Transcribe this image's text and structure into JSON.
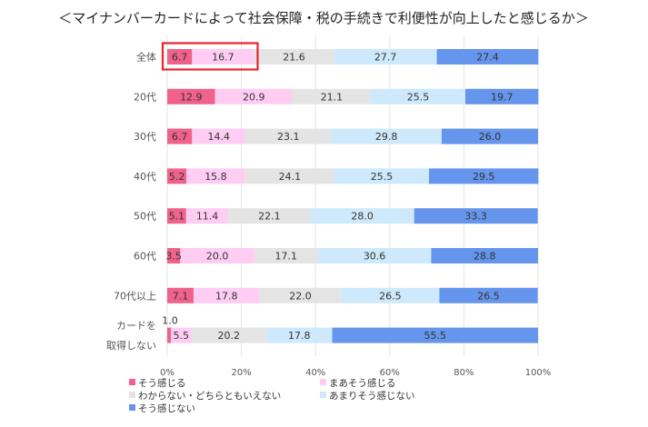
{
  "chart_data": {
    "type": "bar",
    "orientation": "horizontal",
    "stacked": true,
    "title": "＜マイナンバーカードによって社会保障・税の手続きで利便性が向上したと感じるか＞",
    "categories": [
      "全体",
      "20代",
      "30代",
      "40代",
      "50代",
      "60代",
      "70代以上",
      "カードを取得しない"
    ],
    "category_lines": [
      [
        "全体"
      ],
      [
        "20代"
      ],
      [
        "30代"
      ],
      [
        "40代"
      ],
      [
        "50代"
      ],
      [
        "60代"
      ],
      [
        "70代以上"
      ],
      [
        "カードを",
        "取得しない"
      ]
    ],
    "series": [
      {
        "name": "そう感じる",
        "color": "#f0628c",
        "values": [
          6.7,
          12.9,
          6.7,
          5.2,
          5.1,
          3.5,
          7.1,
          1.0
        ]
      },
      {
        "name": "まあそう感じる",
        "color": "#ffcdf3",
        "values": [
          16.7,
          20.9,
          14.4,
          15.8,
          11.4,
          20.0,
          17.8,
          5.5
        ]
      },
      {
        "name": "わからない・どちらともいえない",
        "color": "#e4e4e4",
        "values": [
          21.6,
          21.1,
          23.1,
          24.1,
          22.1,
          17.1,
          22.0,
          20.2
        ]
      },
      {
        "name": "あまりそう感じない",
        "color": "#cde9fb",
        "values": [
          27.7,
          25.5,
          29.8,
          25.5,
          28.0,
          30.6,
          26.5,
          17.8
        ]
      },
      {
        "name": "そう感じない",
        "color": "#6595ec",
        "values": [
          27.4,
          19.7,
          26.0,
          29.5,
          33.3,
          28.8,
          26.5,
          55.5
        ]
      }
    ],
    "xlim": [
      0,
      100
    ],
    "xticks": [
      "0%",
      "20%",
      "40%",
      "60%",
      "80%",
      "100%"
    ],
    "grid": true,
    "legend_position": "bottom",
    "highlight": {
      "category": "全体",
      "series": [
        "そう感じる",
        "まあそう感じる"
      ],
      "color": "#e8242b"
    }
  }
}
